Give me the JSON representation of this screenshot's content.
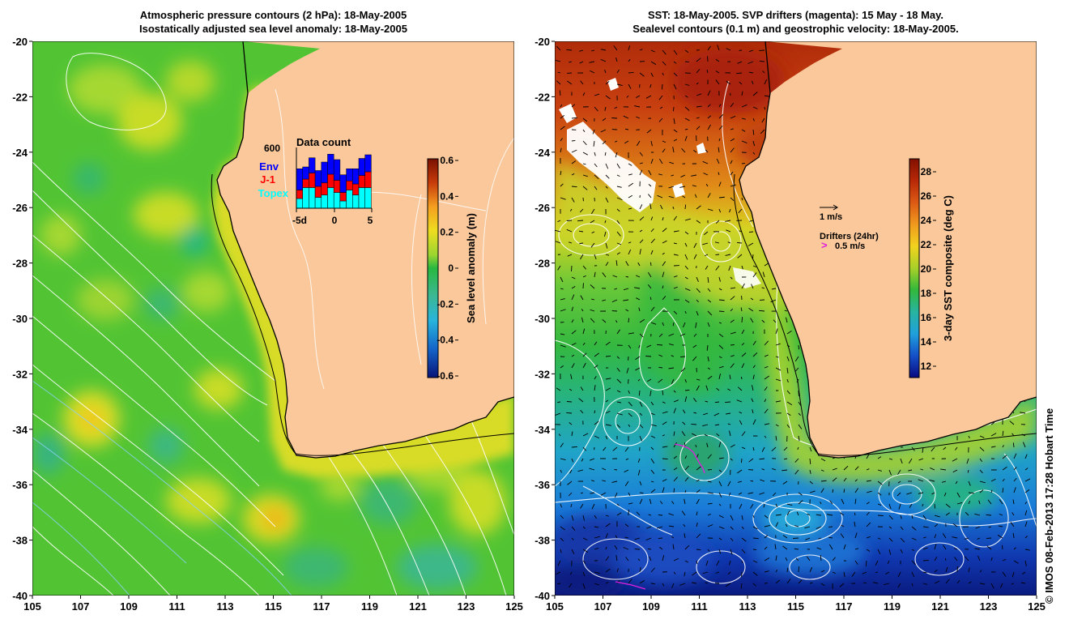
{
  "left_panel": {
    "title_line1": "Atmospheric pressure contours (2 hPa): 18-May-2005",
    "title_line2": "Isostatically adjusted sea level anomaly: 18-May-2005",
    "colorbar": {
      "label": "Sea level anomaly (m)",
      "ticks": [
        "0.6",
        "0.4",
        "0.2",
        "0",
        "-0.2",
        "-0.4",
        "-0.6"
      ],
      "stops": [
        "#7a1000",
        "#c83c0a",
        "#f5a020",
        "#eedd20",
        "#9ad530",
        "#28b840",
        "#3cb890",
        "#28b4dc",
        "#1464c8",
        "#0a1478"
      ]
    },
    "inset": {
      "title": "Data count",
      "max_label": "600",
      "legend": [
        {
          "name": "Env",
          "color": "#0000ff"
        },
        {
          "name": "J-1",
          "color": "#ff0000"
        },
        {
          "name": "Topex",
          "color": "#00ffff"
        }
      ],
      "xticks": [
        "-5d",
        "0",
        "5"
      ],
      "bars": [
        {
          "topex": 0.16,
          "j1": 0.14,
          "env": 0.35
        },
        {
          "topex": 0.34,
          "j1": 0.14,
          "env": 0.2
        },
        {
          "topex": 0.34,
          "j1": 0.24,
          "env": 0.25
        },
        {
          "topex": 0.18,
          "j1": 0.18,
          "env": 0.26
        },
        {
          "topex": 0.22,
          "j1": 0.2,
          "env": 0.34
        },
        {
          "topex": 0.34,
          "j1": 0.22,
          "env": 0.33
        },
        {
          "topex": 0.26,
          "j1": 0.2,
          "env": 0.34
        },
        {
          "topex": 0.12,
          "j1": 0.14,
          "env": 0.29
        },
        {
          "topex": 0.3,
          "j1": 0.15,
          "env": 0.2
        },
        {
          "topex": 0.22,
          "j1": 0.18,
          "env": 0.25
        },
        {
          "topex": 0.34,
          "j1": 0.2,
          "env": 0.28
        },
        {
          "topex": 0.34,
          "j1": 0.26,
          "env": 0.28
        }
      ]
    }
  },
  "right_panel": {
    "title_line1": "SST: 18-May-2005. SVP drifters (magenta): 15 May - 18 May.",
    "title_line2": "Sealevel contours (0.1 m) and geostrophic velocity: 18-May-2005.",
    "colorbar": {
      "label": "3-day SST composite (deg C)",
      "ticks": [
        "28",
        "26",
        "24",
        "22",
        "20",
        "18",
        "16",
        "14",
        "12"
      ],
      "stops": [
        "#821000",
        "#b82808",
        "#dc5a14",
        "#f09a1e",
        "#f2d21e",
        "#a8d028",
        "#32b83c",
        "#28b4a0",
        "#20a0dc",
        "#1450c8",
        "#0a0a80"
      ]
    },
    "vector_key": {
      "label": "1 m/s"
    },
    "drifter_key": {
      "title": "Drifters (24hr)",
      "label": "0.5 m/s",
      "symbol": ">",
      "color": "#e020e0"
    }
  },
  "axes": {
    "lat_labels": [
      "-20",
      "-22",
      "-24",
      "-26",
      "-28",
      "-30",
      "-32",
      "-34",
      "-36",
      "-38",
      "-40"
    ],
    "lon_labels": [
      "105",
      "107",
      "109",
      "111",
      "113",
      "115",
      "117",
      "119",
      "121",
      "123",
      "125"
    ]
  },
  "colors": {
    "land": "#fac89a",
    "coast": "#000000"
  },
  "credit": "© IMOS 08-Feb-2013 17:28 Hobart Time"
}
